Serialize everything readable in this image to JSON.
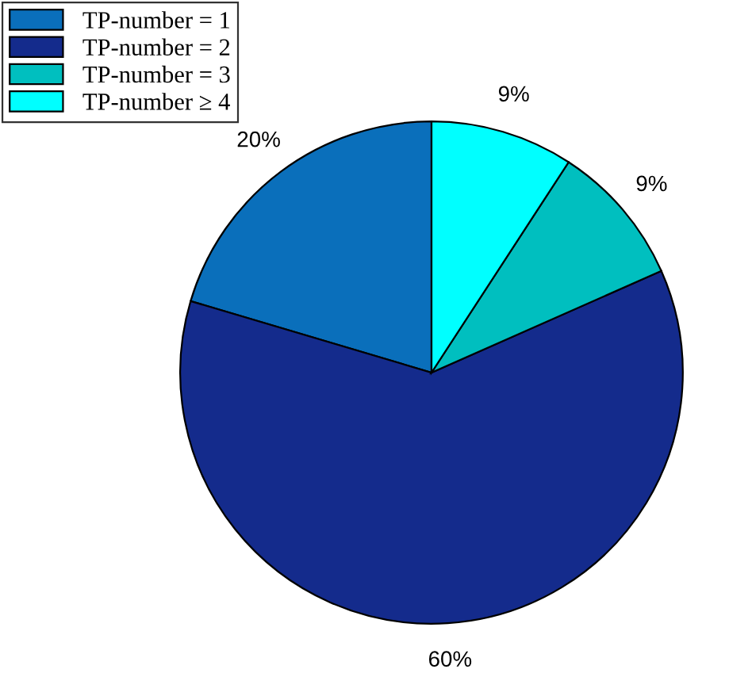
{
  "chart_data": {
    "type": "pie",
    "categories": [
      "TP-number = 1",
      "TP-number = 2",
      "TP-number = 3",
      "TP-number ≥ 4"
    ],
    "values": [
      20,
      60,
      9,
      9
    ],
    "value_labels": [
      "20%",
      "60%",
      "9%",
      "9%"
    ],
    "colors": [
      "#0a6fbb",
      "#142b8c",
      "#00bfbf",
      "#00ffff"
    ],
    "legend": "top left"
  }
}
